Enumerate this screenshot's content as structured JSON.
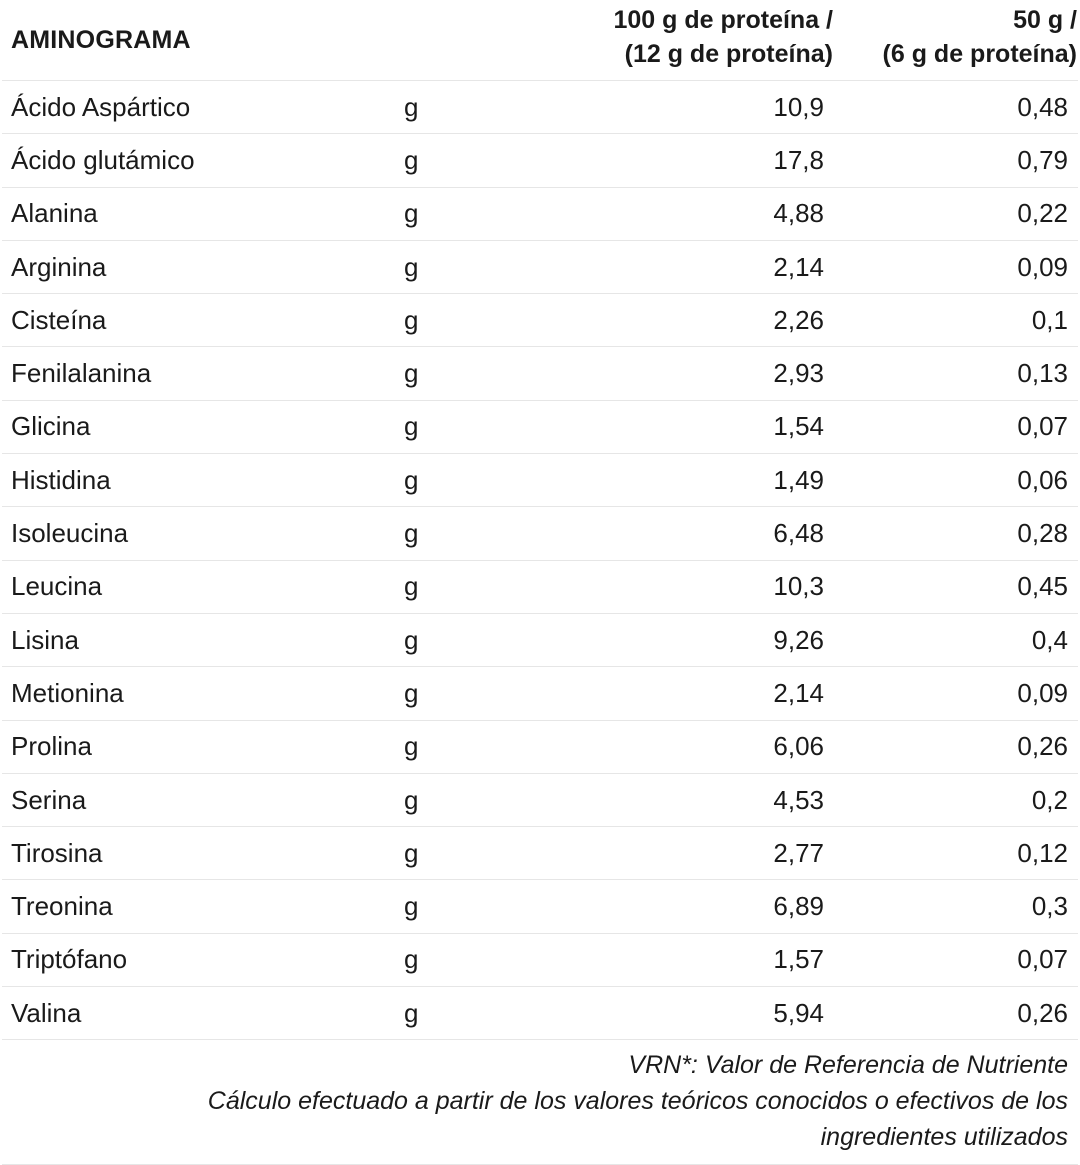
{
  "table": {
    "title": "AMINOGRAMA",
    "col_a_line1": "100 g de proteína /",
    "col_a_line2": "(12 g de proteína)",
    "col_b_line1": "50 g /",
    "col_b_line2": "(6 g de proteína)",
    "rows": [
      {
        "name": "Ácido Aspártico",
        "unit": "g",
        "a": "10,9",
        "b": "0,48"
      },
      {
        "name": "Ácido glutámico",
        "unit": "g",
        "a": "17,8",
        "b": "0,79"
      },
      {
        "name": "Alanina",
        "unit": "g",
        "a": "4,88",
        "b": "0,22"
      },
      {
        "name": "Arginina",
        "unit": "g",
        "a": "2,14",
        "b": "0,09"
      },
      {
        "name": "Cisteína",
        "unit": "g",
        "a": "2,26",
        "b": "0,1"
      },
      {
        "name": "Fenilalanina",
        "unit": "g",
        "a": "2,93",
        "b": "0,13"
      },
      {
        "name": "Glicina",
        "unit": "g",
        "a": "1,54",
        "b": "0,07"
      },
      {
        "name": "Histidina",
        "unit": "g",
        "a": "1,49",
        "b": "0,06"
      },
      {
        "name": "Isoleucina",
        "unit": "g",
        "a": "6,48",
        "b": "0,28"
      },
      {
        "name": "Leucina",
        "unit": "g",
        "a": "10,3",
        "b": "0,45"
      },
      {
        "name": "Lisina",
        "unit": "g",
        "a": "9,26",
        "b": "0,4"
      },
      {
        "name": "Metionina",
        "unit": "g",
        "a": "2,14",
        "b": "0,09"
      },
      {
        "name": "Prolina",
        "unit": "g",
        "a": "6,06",
        "b": "0,26"
      },
      {
        "name": "Serina",
        "unit": "g",
        "a": "4,53",
        "b": "0,2"
      },
      {
        "name": "Tirosina",
        "unit": "g",
        "a": "2,77",
        "b": "0,12"
      },
      {
        "name": "Treonina",
        "unit": "g",
        "a": "6,89",
        "b": "0,3"
      },
      {
        "name": "Triptófano",
        "unit": "g",
        "a": "1,57",
        "b": "0,07"
      },
      {
        "name": "Valina",
        "unit": "g",
        "a": "5,94",
        "b": "0,26"
      }
    ]
  },
  "footer": {
    "vrn_note": "VRN*: Valor de Referencia de Nutriente",
    "calc_note": "Cálculo efectuado a partir de los valores teóricos conocidos o efectivos de los ingredientes utilizados"
  }
}
